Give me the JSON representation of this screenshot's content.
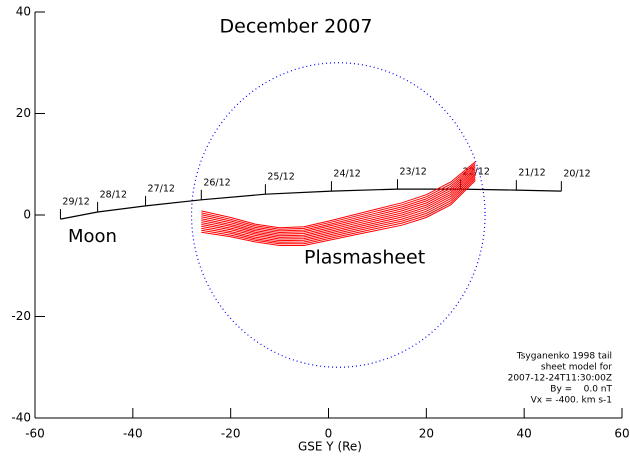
{
  "chart_data": {
    "type": "line",
    "title": "December 2007",
    "xlabel": "GSE Y (Re)",
    "xlim": [
      -60,
      60
    ],
    "ylim": [
      -40,
      40
    ],
    "xticks": [
      -60,
      -40,
      -20,
      0,
      20,
      40,
      60
    ],
    "yticks": [
      -40,
      -20,
      0,
      20,
      40
    ],
    "series": [
      {
        "name": "Moon",
        "color": "#000000",
        "x": [
          -54.8,
          -47.2,
          -37.4,
          -26.0,
          -12.9,
          0.6,
          14.1,
          27.0,
          38.4,
          47.6
        ],
        "values": [
          -0.8,
          0.6,
          1.8,
          3.0,
          4.1,
          4.7,
          5.1,
          5.1,
          4.9,
          4.7
        ],
        "point_labels": [
          "29/12",
          "28/12",
          "27/12",
          "26/12",
          "25/12",
          "24/12",
          "23/12",
          "22/12",
          "21/12",
          "20/12"
        ]
      },
      {
        "name": "Plasmasheet",
        "color": "#ff0000",
        "x": [
          -26,
          -20,
          -15,
          -10,
          -5,
          0,
          5,
          10,
          15,
          20,
          25,
          30
        ],
        "upper": [
          0.8,
          -0.5,
          -1.8,
          -2.5,
          -2.3,
          -1.2,
          0.0,
          1.2,
          2.4,
          4.0,
          6.5,
          10.5
        ],
        "lower": [
          -3.4,
          -4.3,
          -5.3,
          -6.0,
          -6.0,
          -5.0,
          -4.0,
          -3.0,
          -2.0,
          -0.5,
          2.0,
          6.8
        ]
      }
    ],
    "circle": {
      "center": [
        2,
        0
      ],
      "radius": 30,
      "color": "#0000ff"
    },
    "annotation": [
      "Tsyganenko 1998 tail",
      "sheet model for",
      "2007-12-24T11:30:00Z",
      "By =    0.0 nT",
      "Vx = -400. km s-1"
    ]
  }
}
